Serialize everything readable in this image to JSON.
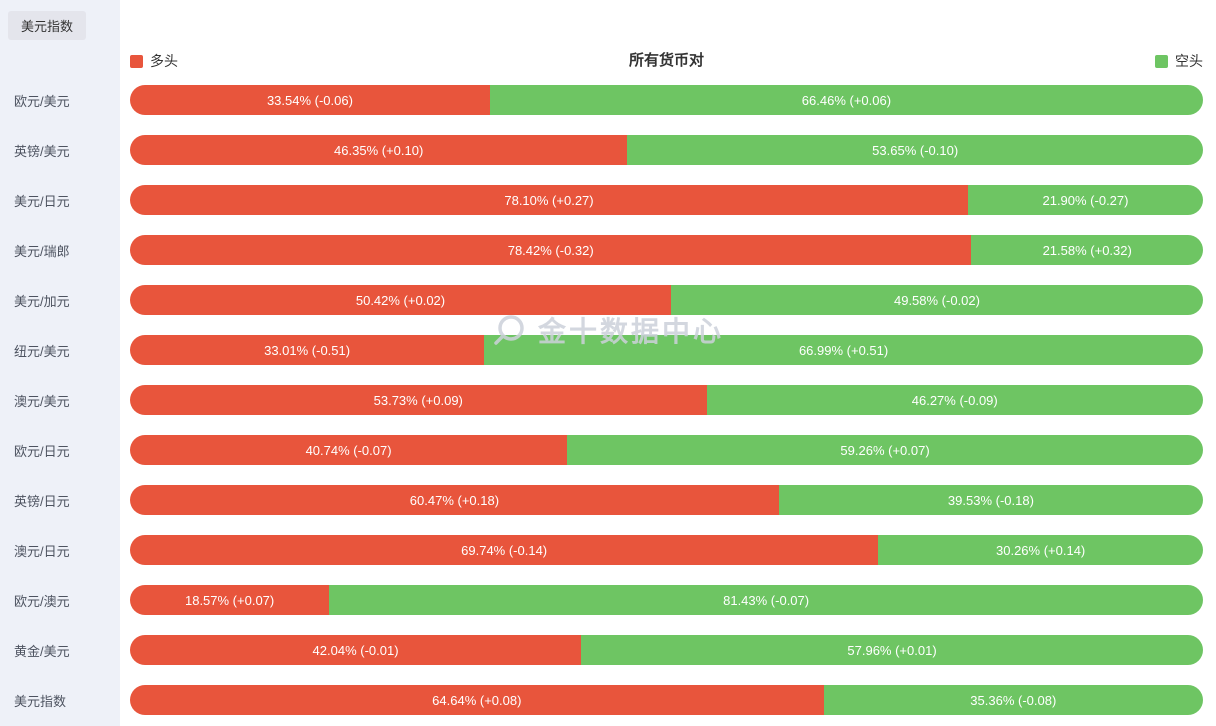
{
  "page": {
    "background": "#ffffff",
    "label_column_background": "#eef1f8"
  },
  "header": {
    "index_button": "美元指数"
  },
  "legend": {
    "long_label": "多头",
    "short_label": "空头",
    "long_color": "#e8553c",
    "short_color": "#6ec563"
  },
  "watermark": {
    "text": "金十数据中心"
  },
  "chart_data": {
    "type": "bar",
    "orientation": "horizontal-stacked",
    "title": "所有货币对",
    "xlim": [
      0,
      100
    ],
    "grid": false,
    "legend_position": "top",
    "categories": [
      "欧元/美元",
      "英镑/美元",
      "美元/日元",
      "美元/瑞郎",
      "美元/加元",
      "纽元/美元",
      "澳元/美元",
      "欧元/日元",
      "英镑/日元",
      "澳元/日元",
      "欧元/澳元",
      "黄金/美元",
      "美元指数"
    ],
    "series": [
      {
        "name": "多头",
        "color": "#e8553c",
        "values": [
          33.54,
          46.35,
          78.1,
          78.42,
          50.42,
          33.01,
          53.73,
          40.74,
          60.47,
          69.74,
          18.57,
          42.04,
          64.64
        ],
        "changes": [
          "-0.06",
          "+0.10",
          "+0.27",
          "-0.32",
          "+0.02",
          "-0.51",
          "+0.09",
          "-0.07",
          "+0.18",
          "-0.14",
          "+0.07",
          "-0.01",
          "+0.08"
        ]
      },
      {
        "name": "空头",
        "color": "#6ec563",
        "values": [
          66.46,
          53.65,
          21.9,
          21.58,
          49.58,
          66.99,
          46.27,
          59.26,
          39.53,
          30.26,
          81.43,
          57.96,
          35.36
        ],
        "changes": [
          "+0.06",
          "-0.10",
          "-0.27",
          "+0.32",
          "-0.02",
          "+0.51",
          "-0.09",
          "+0.07",
          "-0.18",
          "+0.14",
          "-0.07",
          "+0.01",
          "-0.08"
        ]
      }
    ]
  }
}
